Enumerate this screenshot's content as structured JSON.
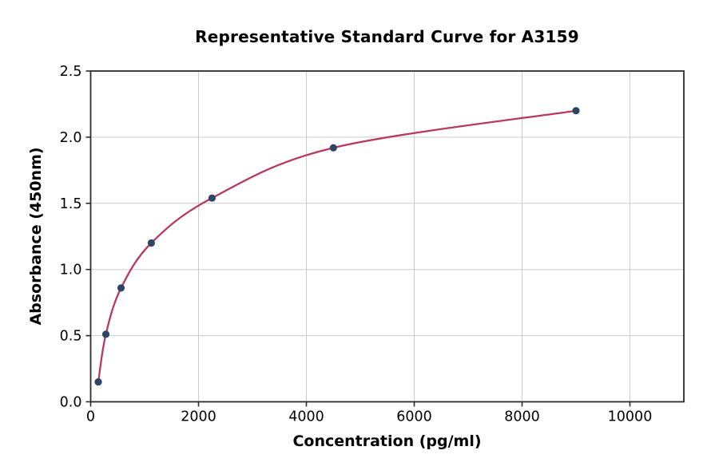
{
  "chart_data": {
    "type": "scatter",
    "title": "Representative Standard Curve for A3159",
    "xlabel": "Concentration (pg/ml)",
    "ylabel": "Absorbance (450nm)",
    "xlim": [
      0,
      11000
    ],
    "ylim": [
      0,
      2.5
    ],
    "xticks": [
      0,
      2000,
      4000,
      6000,
      8000,
      10000
    ],
    "yticks": [
      0,
      0.5,
      1.0,
      1.5,
      2.0,
      2.5
    ],
    "grid": true,
    "legend": null,
    "points": [
      {
        "x": 140.6,
        "y": 0.15
      },
      {
        "x": 281.25,
        "y": 0.51
      },
      {
        "x": 562.5,
        "y": 0.86
      },
      {
        "x": 1125,
        "y": 1.2
      },
      {
        "x": 2250,
        "y": 1.54
      },
      {
        "x": 4500,
        "y": 1.92
      },
      {
        "x": 9000,
        "y": 2.2
      }
    ],
    "fit": "smooth curve through all points (4PL-style fit from first to last point)",
    "colors": {
      "curve": "#b63a5e",
      "points": "#2e4568",
      "grid": "#cccccc",
      "spine": "#2b2b2b",
      "text": "#000000",
      "background": "#ffffff"
    }
  }
}
